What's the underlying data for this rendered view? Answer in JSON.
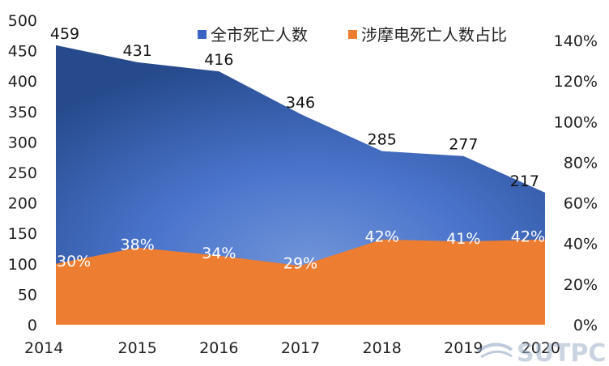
{
  "chart_data": {
    "type": "area",
    "categories": [
      "2014",
      "2015",
      "2016",
      "2017",
      "2018",
      "2019",
      "2020"
    ],
    "series": [
      {
        "name": "全市死亡人数",
        "axis": "left",
        "values": [
          459,
          431,
          416,
          346,
          285,
          277,
          217
        ],
        "labels": [
          "459",
          "431",
          "416",
          "346",
          "285",
          "277",
          "217"
        ],
        "color": "#3a64c4"
      },
      {
        "name": "涉摩电死亡人数占比",
        "axis": "right",
        "values": [
          30,
          38,
          34,
          29,
          42,
          41,
          42
        ],
        "labels": [
          "30%",
          "38%",
          "34%",
          "29%",
          "42%",
          "41%",
          "42%"
        ],
        "color": "#ed7d31"
      }
    ],
    "y_left": {
      "min": 0,
      "max": 500,
      "step": 50,
      "ticks": [
        "0",
        "50",
        "100",
        "150",
        "200",
        "250",
        "300",
        "350",
        "400",
        "450",
        "500"
      ]
    },
    "y_right": {
      "min": 0,
      "max": 150,
      "step": 20,
      "ticks": [
        "0%",
        "20%",
        "40%",
        "60%",
        "80%",
        "100%",
        "120%",
        "140%"
      ]
    },
    "legend_position": "top-right",
    "grid": false
  },
  "watermark": {
    "text": "SUTPC"
  }
}
